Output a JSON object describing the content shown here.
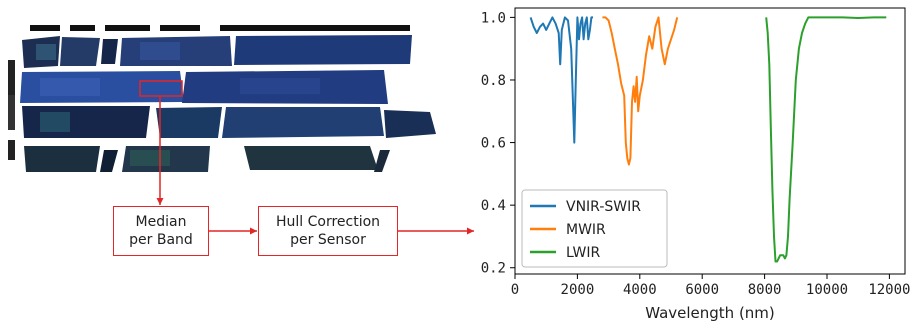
{
  "pipeline": {
    "step1": {
      "line1": "Median",
      "line2": "per Band"
    },
    "step2": {
      "line1": "Hull Correction",
      "line2": "per Sensor"
    },
    "arrow_color": "#e32626"
  },
  "chart_data": {
    "type": "line",
    "xlabel": "Wavelength (nm)",
    "ylabel": "",
    "xlim": [
      0,
      12500
    ],
    "ylim": [
      0.18,
      1.03
    ],
    "xticks": [
      0,
      2000,
      4000,
      6000,
      8000,
      10000,
      12000
    ],
    "xtick_labels": [
      "0",
      "2000",
      "4000",
      "6000",
      "8000",
      "10000",
      "12000"
    ],
    "yticks": [
      0.2,
      0.4,
      0.6,
      0.8,
      1.0
    ],
    "ytick_labels": [
      "0.2",
      "0.4",
      "0.6",
      "0.8",
      "1.0"
    ],
    "grid": false,
    "legend_position": "lower-left",
    "series": [
      {
        "name": "VNIR-SWIR",
        "color": "#1f77b4",
        "x": [
          500,
          600,
          700,
          800,
          900,
          1000,
          1100,
          1200,
          1300,
          1400,
          1450,
          1500,
          1600,
          1700,
          1800,
          1900,
          1950,
          2000,
          2050,
          2100,
          2150,
          2200,
          2250,
          2300,
          2350,
          2400,
          2450,
          2500
        ],
        "y": [
          1.0,
          0.97,
          0.95,
          0.97,
          0.98,
          0.96,
          0.98,
          1.0,
          0.98,
          0.95,
          0.85,
          0.96,
          1.0,
          0.99,
          0.9,
          0.6,
          0.8,
          1.0,
          0.93,
          0.98,
          1.0,
          0.93,
          0.98,
          1.0,
          0.93,
          0.96,
          1.0,
          1.0
        ]
      },
      {
        "name": "MWIR",
        "color": "#ff7f0e",
        "x": [
          2800,
          2900,
          3000,
          3100,
          3200,
          3300,
          3400,
          3500,
          3550,
          3600,
          3650,
          3700,
          3750,
          3800,
          3850,
          3900,
          3950,
          4000,
          4100,
          4200,
          4300,
          4400,
          4500,
          4600,
          4700,
          4800,
          4900,
          5000,
          5100,
          5200
        ],
        "y": [
          1.0,
          1.0,
          0.99,
          0.95,
          0.9,
          0.85,
          0.79,
          0.75,
          0.6,
          0.55,
          0.53,
          0.55,
          0.73,
          0.78,
          0.73,
          0.81,
          0.7,
          0.75,
          0.8,
          0.88,
          0.94,
          0.9,
          0.97,
          1.0,
          0.9,
          0.85,
          0.9,
          0.93,
          0.96,
          1.0
        ]
      },
      {
        "name": "LWIR",
        "color": "#2ca02c",
        "x": [
          8050,
          8100,
          8150,
          8200,
          8250,
          8300,
          8350,
          8400,
          8450,
          8500,
          8550,
          8600,
          8650,
          8700,
          8750,
          8800,
          8900,
          9000,
          9100,
          9200,
          9300,
          9400,
          9600,
          9800,
          10000,
          10500,
          11000,
          11500,
          11900
        ],
        "y": [
          1.0,
          0.95,
          0.85,
          0.65,
          0.45,
          0.3,
          0.22,
          0.22,
          0.23,
          0.24,
          0.24,
          0.24,
          0.23,
          0.24,
          0.3,
          0.42,
          0.6,
          0.8,
          0.9,
          0.95,
          0.98,
          1.0,
          1.0,
          1.0,
          1.0,
          1.0,
          0.998,
          1.0,
          1.0
        ]
      }
    ]
  }
}
